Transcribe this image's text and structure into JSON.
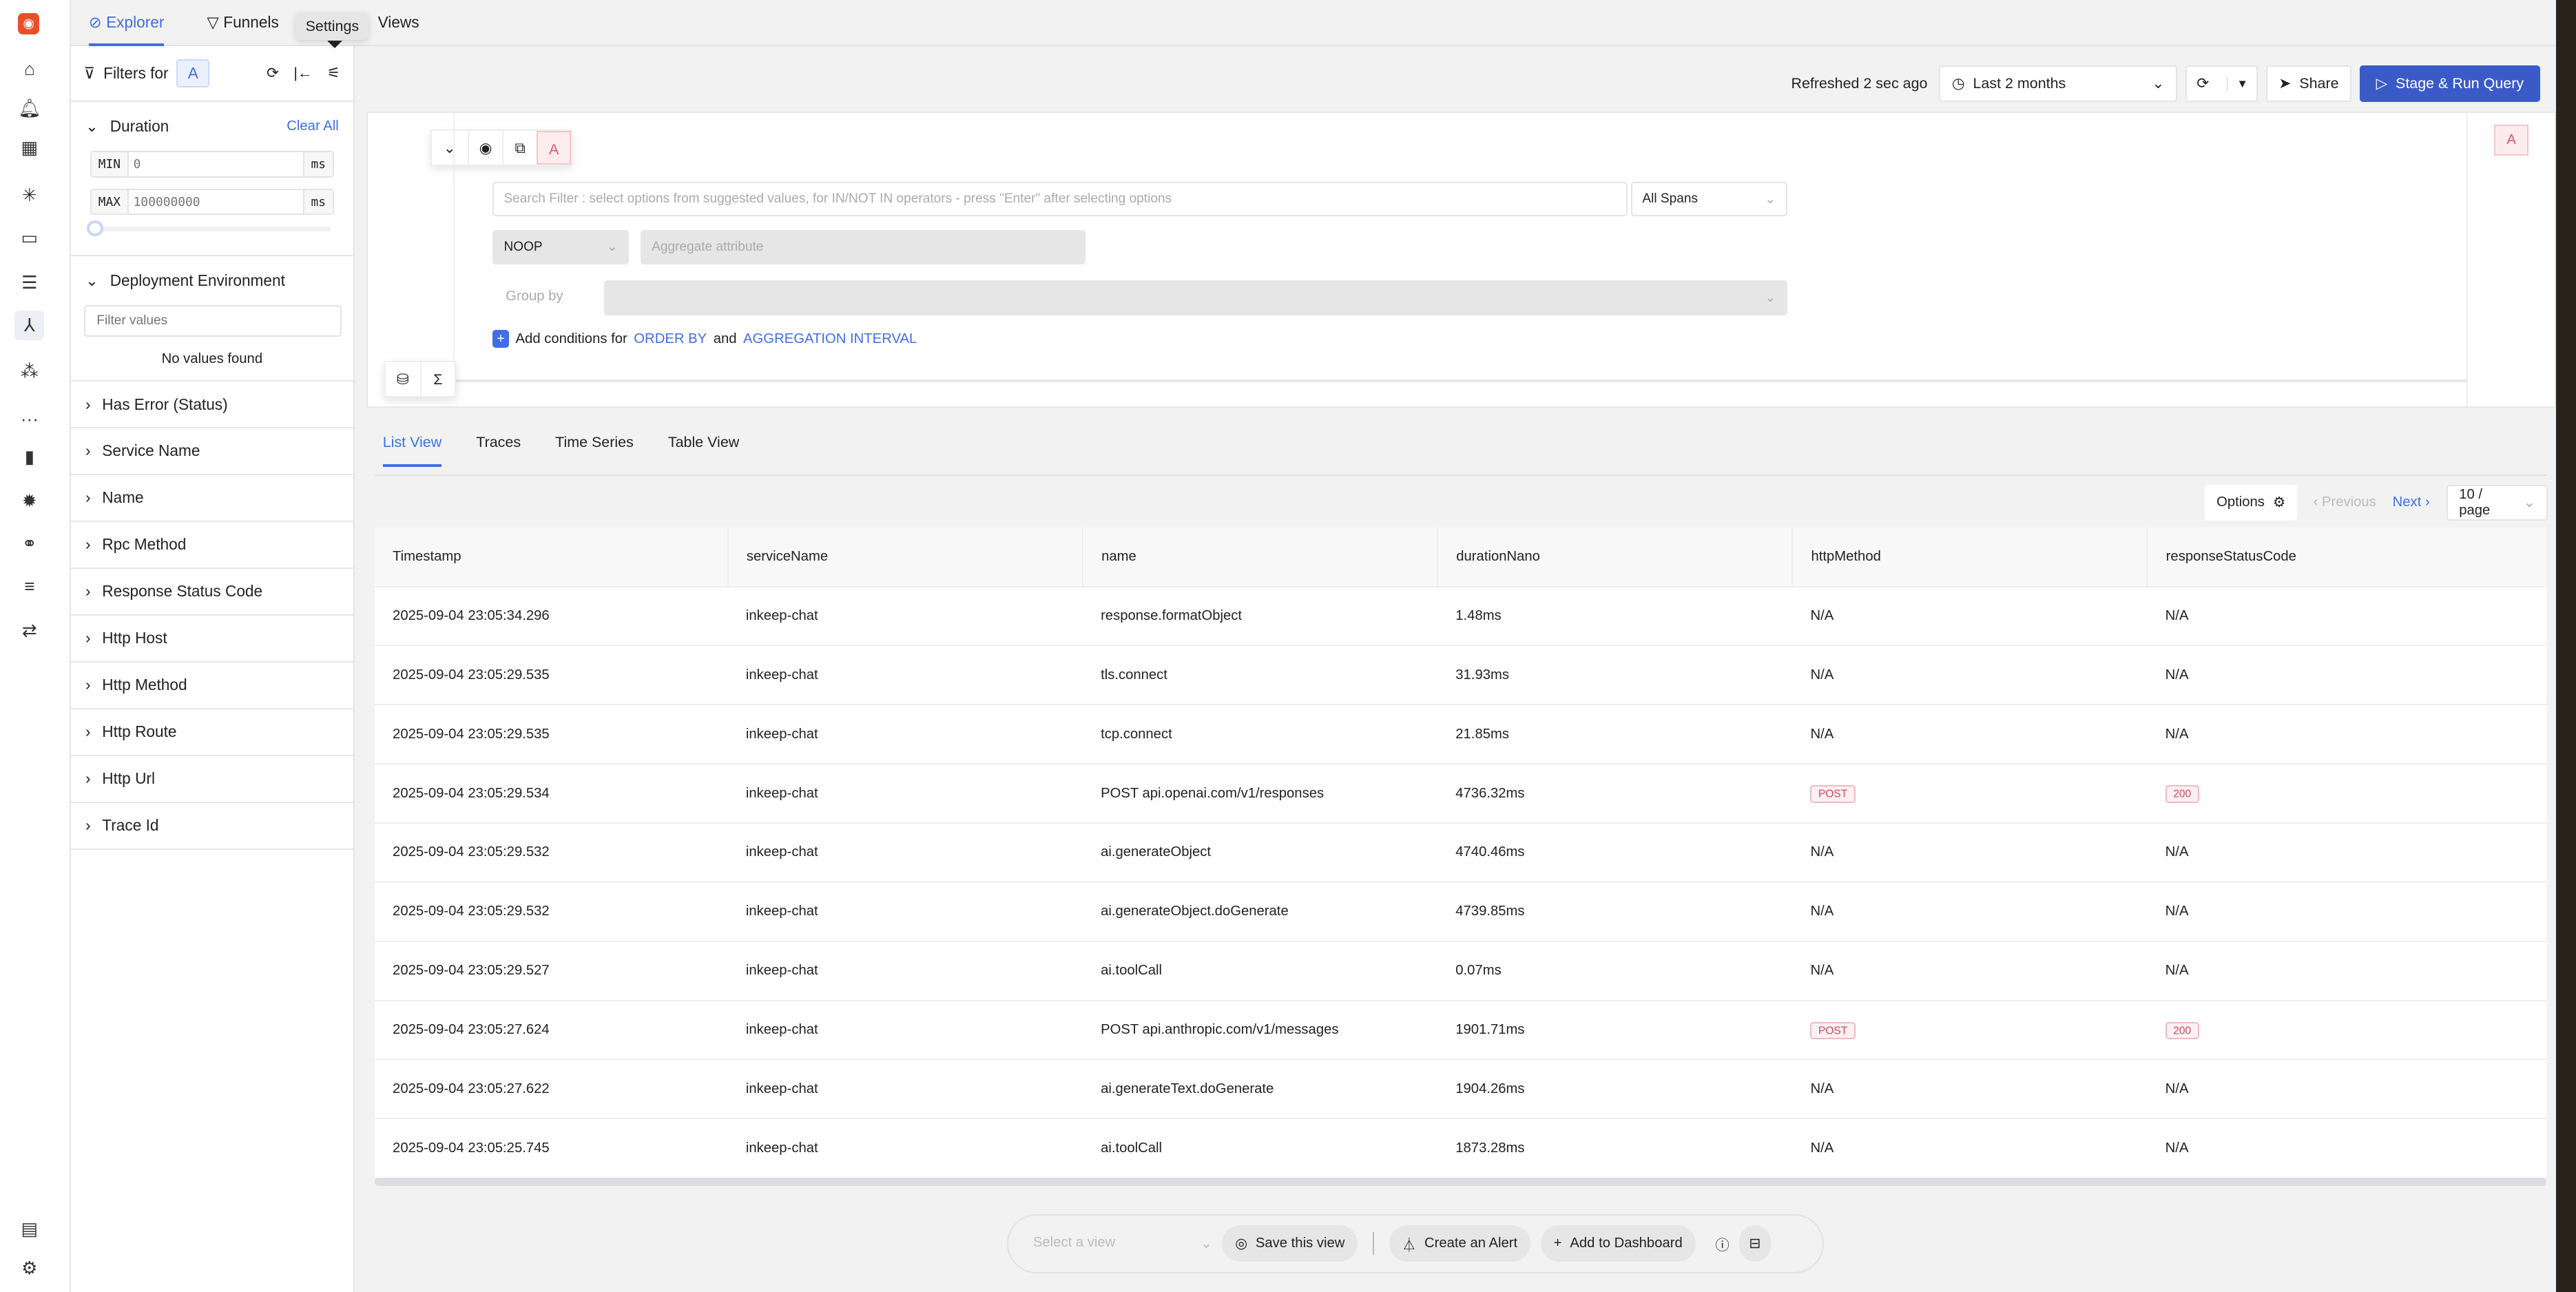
{
  "nav": {
    "icons": [
      "logo-icon",
      "home-icon",
      "alerts-icon",
      "dashboards-icon",
      "ai-cursor-icon",
      "infra-icon",
      "logs-icon",
      "traces-icon",
      "services-icon",
      "more-icon",
      "metrics-icon",
      "exceptions-icon",
      "explore-icon",
      "pipelines-icon",
      "integrations-icon",
      "feedback-icon",
      "settings-icon"
    ],
    "active": "traces-icon"
  },
  "tabs": [
    {
      "label": "Explorer",
      "active": true
    },
    {
      "label": "Funnels"
    },
    {
      "label": "Views"
    }
  ],
  "tooltip": "Settings",
  "filters": {
    "title": "Filters for",
    "query": "A",
    "duration": {
      "label": "Duration",
      "clear": "Clear All",
      "min_label": "MIN",
      "min_placeholder": "0",
      "max_label": "MAX",
      "max_placeholder": "100000000",
      "unit": "ms"
    },
    "deployment": {
      "label": "Deployment Environment",
      "placeholder": "Filter values",
      "empty": "No values found"
    },
    "sections": [
      "Has Error (Status)",
      "Service Name",
      "Name",
      "Rpc Method",
      "Response Status Code",
      "Http Host",
      "Http Method",
      "Http Route",
      "Http Url",
      "Trace Id"
    ]
  },
  "topbar": {
    "refreshed": "Refreshed 2 sec ago",
    "time_range": "Last 2 months",
    "share": "Share",
    "run": "Stage & Run Query"
  },
  "query": {
    "label": "A",
    "search_placeholder": "Search Filter : select options from suggested values, for IN/NOT IN operators - press \"Enter\" after selecting options",
    "span_scope": "All Spans",
    "aggregate_op": "NOOP",
    "aggregate_placeholder": "Aggregate attribute",
    "group_by": "Group by",
    "add_conditions": "Add conditions for",
    "order_by": "ORDER BY",
    "and": "and",
    "aggregation_interval": "AGGREGATION INTERVAL"
  },
  "view_tabs": [
    {
      "label": "List View",
      "active": true
    },
    {
      "label": "Traces"
    },
    {
      "label": "Time Series"
    },
    {
      "label": "Table View"
    }
  ],
  "pager": {
    "options": "Options",
    "previous": "Previous",
    "next": "Next",
    "page_size": "10 / page"
  },
  "table": {
    "columns": [
      "Timestamp",
      "serviceName",
      "name",
      "durationNano",
      "httpMethod",
      "responseStatusCode"
    ],
    "rows": [
      [
        "2025-09-04 23:05:34.296",
        "inkeep-chat",
        "response.formatObject",
        "1.48ms",
        "N/A",
        "N/A"
      ],
      [
        "2025-09-04 23:05:29.535",
        "inkeep-chat",
        "tls.connect",
        "31.93ms",
        "N/A",
        "N/A"
      ],
      [
        "2025-09-04 23:05:29.535",
        "inkeep-chat",
        "tcp.connect",
        "21.85ms",
        "N/A",
        "N/A"
      ],
      [
        "2025-09-04 23:05:29.534",
        "inkeep-chat",
        "POST api.openai.com/v1/responses",
        "4736.32ms",
        "POST",
        "200"
      ],
      [
        "2025-09-04 23:05:29.532",
        "inkeep-chat",
        "ai.generateObject",
        "4740.46ms",
        "N/A",
        "N/A"
      ],
      [
        "2025-09-04 23:05:29.532",
        "inkeep-chat",
        "ai.generateObject.doGenerate",
        "4739.85ms",
        "N/A",
        "N/A"
      ],
      [
        "2025-09-04 23:05:29.527",
        "inkeep-chat",
        "ai.toolCall",
        "0.07ms",
        "N/A",
        "N/A"
      ],
      [
        "2025-09-04 23:05:27.624",
        "inkeep-chat",
        "POST api.anthropic.com/v1/messages",
        "1901.71ms",
        "POST",
        "200"
      ],
      [
        "2025-09-04 23:05:27.622",
        "inkeep-chat",
        "ai.generateText.doGenerate",
        "1904.26ms",
        "N/A",
        "N/A"
      ],
      [
        "2025-09-04 23:05:25.745",
        "inkeep-chat",
        "ai.toolCall",
        "1873.28ms",
        "N/A",
        "N/A"
      ]
    ]
  },
  "bottom": {
    "select_view": "Select a view",
    "save": "Save this view",
    "alert": "Create an Alert",
    "dashboard": "Add to Dashboard"
  },
  "colors": {
    "accent": "#3f6ee8",
    "primary_button": "#3a5bc7",
    "brand": "#e8502a"
  }
}
